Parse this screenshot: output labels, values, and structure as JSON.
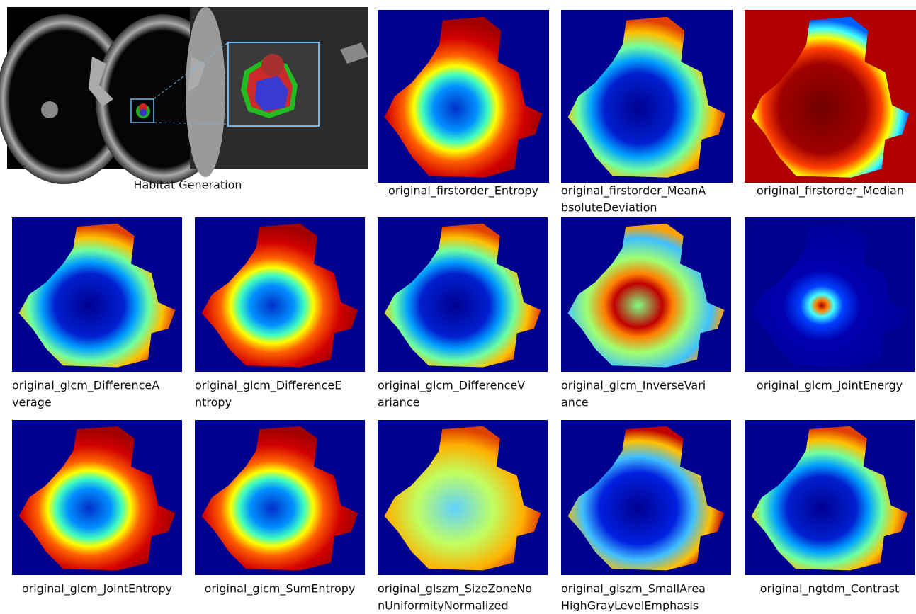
{
  "habitat": {
    "caption": "Habitat Generation"
  },
  "panels": [
    {
      "caption": [
        "original_firstorder_Entropy"
      ]
    },
    {
      "caption": [
        "original_firstorder_MeanA",
        "bsoluteDeviation"
      ]
    },
    {
      "caption": [
        "original_firstorder_Median"
      ]
    },
    {
      "caption": [
        "original_glcm_DifferenceA",
        "verage"
      ]
    },
    {
      "caption": [
        "original_glcm_DifferenceE",
        "ntropy"
      ]
    },
    {
      "caption": [
        "original_glcm_DifferenceV",
        "ariance"
      ]
    },
    {
      "caption": [
        "original_glcm_InverseVari",
        "ance"
      ]
    },
    {
      "caption": [
        "original_glcm_JointEnergy"
      ]
    },
    {
      "caption": [
        "original_glcm_JointEntropy"
      ]
    },
    {
      "caption": [
        "original_glcm_SumEntropy"
      ]
    },
    {
      "caption": [
        "original_glszm_SizeZoneNo",
        "nUniformityNormalized"
      ]
    },
    {
      "caption": [
        "original_glszm_SmallArea",
        "HighGrayLevelEmphasis"
      ]
    },
    {
      "caption": [
        "original_ngtdm_Contrast"
      ]
    }
  ]
}
